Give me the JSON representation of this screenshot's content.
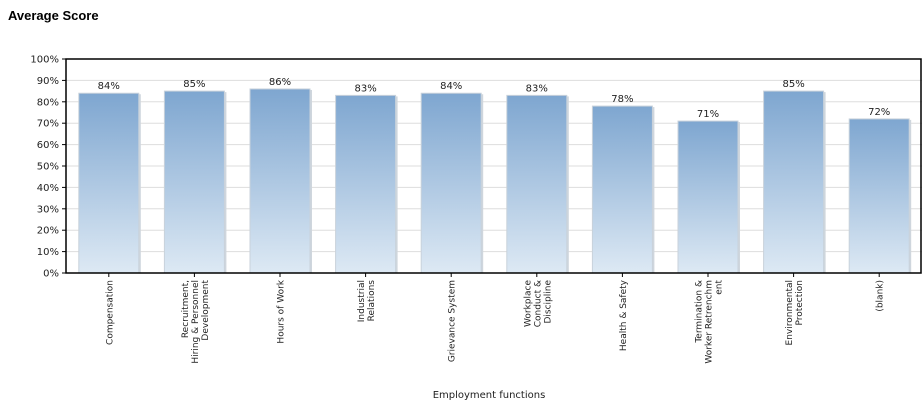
{
  "page": {
    "title": "Average Score"
  },
  "chart_data": {
    "type": "bar",
    "categories": [
      [
        "Compensation"
      ],
      [
        "Recruitment,",
        "Hiring & Personnel",
        "Development"
      ],
      [
        "Hours of Work"
      ],
      [
        "Industrial",
        "Relations"
      ],
      [
        "Grievance System"
      ],
      [
        "Workplace",
        "Conduct &",
        "Discipline"
      ],
      [
        "Health & Safety"
      ],
      [
        "Termination &",
        "Worker Retrenchm",
        "ent"
      ],
      [
        "Environmental",
        "Protection"
      ],
      [
        "(blank)"
      ]
    ],
    "values": [
      84,
      85,
      86,
      83,
      84,
      83,
      78,
      71,
      85,
      72
    ],
    "data_labels": [
      "84%",
      "85%",
      "86%",
      "83%",
      "84%",
      "83%",
      "78%",
      "71%",
      "85%",
      "72%"
    ],
    "y_ticks": [
      0,
      10,
      20,
      30,
      40,
      50,
      60,
      70,
      80,
      90,
      100
    ],
    "y_tick_labels": [
      "0%",
      "10%",
      "20%",
      "30%",
      "40%",
      "50%",
      "60%",
      "70%",
      "80%",
      "90%",
      "100%"
    ],
    "ylim": [
      0,
      100
    ],
    "xlabel": "Employment functions",
    "ylabel": "",
    "grid": true,
    "colors": {
      "bar_top": "#7ea6d0",
      "bar_bottom": "#dde9f4",
      "bar_edge": "#c9d2db",
      "grid": "#dddddd",
      "axis": "#000000"
    }
  }
}
